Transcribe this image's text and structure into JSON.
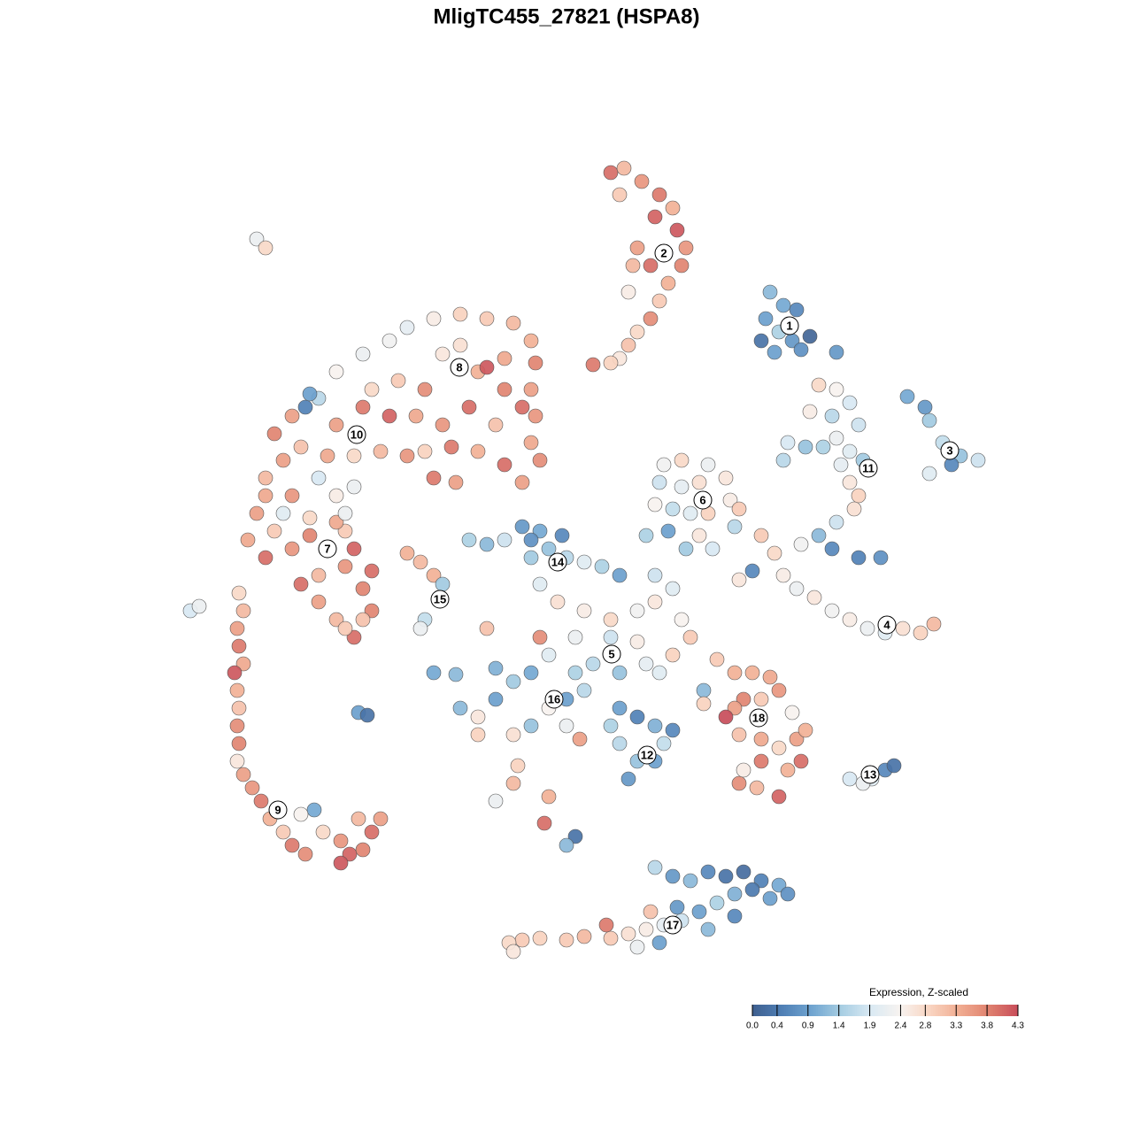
{
  "chart_data": {
    "type": "scatter",
    "title": "MligTC455_27821 (HSPA8)",
    "xlim": [
      20,
      112
    ],
    "ylim": [
      19,
      110
    ],
    "x": [
      69,
      70.5,
      72.5,
      74.5,
      76,
      76.5,
      77.5,
      77,
      75.5,
      74.5,
      73.5,
      72,
      71,
      70,
      69,
      67,
      72,
      73.5,
      71.5,
      74,
      70,
      71,
      87,
      88.5,
      90,
      86.5,
      88,
      89.5,
      91.5,
      86,
      87.5,
      90.5,
      94.5,
      102.5,
      104.5,
      105,
      106.5,
      108.5,
      110.5,
      105,
      107.5,
      92.5,
      94.5,
      96,
      94,
      97,
      94.5,
      93,
      96,
      97.5,
      89,
      91,
      88.5,
      95,
      96,
      97,
      96.5,
      94.5,
      92.5,
      90.5,
      94,
      97,
      99.5,
      91.5,
      86,
      87.5,
      88.5,
      90,
      92,
      94,
      96,
      98,
      100,
      102,
      104,
      105.5,
      83.5,
      85,
      75,
      77,
      80,
      82,
      74.5,
      77,
      79,
      74,
      76,
      78,
      80,
      82.5,
      83,
      73,
      75.5,
      79,
      80.5,
      77.5,
      83.5,
      44,
      46,
      49,
      52,
      55,
      58,
      60,
      60.5,
      60,
      60.5,
      60,
      61,
      59,
      57,
      54,
      51,
      48,
      46,
      43,
      40,
      37,
      34,
      31,
      32,
      30,
      33,
      36,
      38,
      41,
      42,
      45,
      48,
      50,
      54,
      55,
      57,
      53,
      50,
      47,
      44,
      41,
      38,
      34.5,
      35,
      57,
      52,
      49,
      51.5,
      59,
      56,
      36,
      38,
      40,
      33,
      30,
      29,
      31,
      28,
      30,
      33,
      35,
      39,
      40,
      42,
      41,
      39,
      36,
      34,
      36,
      38,
      40,
      42,
      39,
      38,
      35,
      32,
      39,
      41,
      27,
      27.5,
      26.8,
      27,
      27.5,
      26.5,
      26.8,
      27,
      26.8,
      27,
      26.8,
      27.5,
      28.5,
      29.5,
      30.5,
      32,
      33,
      34.5,
      35.5,
      34,
      36.5,
      38.5,
      39.5,
      41,
      42,
      43,
      40.5,
      38.5,
      21.5,
      22.5,
      46,
      47.5,
      49,
      50,
      48,
      47.5,
      53,
      55,
      57,
      59,
      61,
      62,
      64,
      60,
      61,
      66,
      68,
      70,
      60,
      63.5,
      63,
      66,
      69,
      72,
      74,
      76,
      65,
      69,
      72,
      67,
      70,
      73,
      76,
      78,
      61,
      62,
      65,
      74.5,
      77,
      74,
      55,
      81,
      83,
      79.5,
      79.5,
      52,
      54,
      56,
      58,
      60,
      62,
      60,
      58,
      54,
      56,
      64,
      66,
      64,
      65.5,
      49,
      51.5,
      40.5,
      41.5,
      70,
      72,
      74,
      76,
      70,
      72,
      74,
      71,
      69,
      75,
      58.5,
      58,
      56,
      62,
      61.5,
      65,
      64,
      85,
      87,
      88,
      84,
      86,
      83,
      82,
      83.5,
      86,
      88,
      90,
      91,
      90.5,
      89,
      86,
      83.5,
      85.5,
      88,
      84,
      89.5,
      96,
      98.5,
      100,
      101,
      97.5,
      74,
      76,
      78,
      80,
      82,
      84,
      86,
      88,
      89,
      87,
      85,
      83,
      81,
      79,
      77,
      75,
      73,
      71,
      69,
      68.5,
      66,
      64,
      61,
      59,
      57.5,
      58,
      72,
      74.5,
      80,
      83,
      76.5,
      73.5,
      29,
      30
    ],
    "y": [
      108.5,
      109,
      107.5,
      106,
      104.5,
      102,
      100,
      98,
      96,
      94,
      92,
      90.5,
      89,
      87.5,
      87,
      86.8,
      100,
      98,
      98,
      103.5,
      106,
      95,
      95,
      93.5,
      93,
      92,
      90.5,
      89.5,
      90,
      89.5,
      88.2,
      88.5,
      88.2,
      83.2,
      82,
      80.5,
      78,
      76.5,
      76,
      74.5,
      75.5,
      84.5,
      84,
      82.5,
      81,
      80,
      78.5,
      77.5,
      77,
      76,
      78,
      77.5,
      76,
      75.5,
      73.5,
      72,
      70.5,
      69,
      67.5,
      66.5,
      66,
      65,
      65,
      81.5,
      67.5,
      65.5,
      63,
      61.5,
      60.5,
      59,
      58,
      57,
      56.5,
      57,
      56.5,
      57.5,
      62.5,
      63.5,
      75.5,
      76,
      75.5,
      74,
      73.5,
      73,
      73.5,
      71,
      70.5,
      70,
      70,
      71.5,
      68.5,
      67.5,
      68,
      67.5,
      66,
      66,
      70.5,
      89.5,
      91,
      92,
      92.5,
      92,
      91.5,
      89.5,
      87,
      84,
      81,
      78,
      76,
      73.5,
      75.5,
      77,
      77.5,
      77,
      76.5,
      77,
      76.5,
      76.5,
      77.5,
      79,
      76,
      74,
      81,
      83,
      86,
      88,
      84,
      85,
      84,
      88,
      86,
      86.5,
      84,
      82,
      80,
      81,
      81,
      82,
      80,
      82,
      83.5,
      87.5,
      89,
      74,
      73.5,
      82,
      80,
      74,
      72,
      73,
      72,
      72,
      70,
      68,
      67,
      65,
      66,
      67.5,
      68,
      66,
      63.5,
      61.5,
      64,
      63,
      62,
      60,
      58,
      56,
      59,
      57,
      69,
      69.5,
      70,
      70,
      58,
      61,
      59,
      57,
      55,
      53,
      52,
      50,
      48,
      46,
      44,
      42,
      40.5,
      39,
      37.5,
      35.5,
      34,
      32.5,
      31.5,
      36.5,
      36,
      34,
      33,
      31.5,
      32,
      34,
      35.5,
      35.5,
      30.5,
      59,
      59.5,
      65.5,
      64.5,
      63,
      62,
      58,
      57,
      67,
      66.5,
      67,
      68.5,
      68,
      66,
      65,
      65,
      62,
      64.5,
      64,
      63,
      67,
      67.5,
      60,
      59,
      58,
      59,
      60,
      61.5,
      56,
      56,
      55.5,
      53,
      52,
      53,
      54,
      56,
      56,
      54,
      52,
      52,
      58,
      63,
      57,
      53.5,
      52,
      50,
      48.5,
      48,
      47,
      49,
      51,
      52,
      48,
      46,
      45,
      45,
      52.5,
      49,
      50,
      46,
      44.5,
      52,
      51.8,
      47.5,
      47.2,
      48,
      47,
      46,
      45.5,
      44,
      42,
      42,
      40,
      46,
      44,
      41.5,
      39.5,
      37.5,
      38,
      35,
      33.5,
      32.5,
      52,
      51.5,
      50,
      49,
      49,
      48,
      47,
      45,
      44.5,
      43.5,
      44.5,
      45.5,
      42,
      41,
      42,
      39.5,
      39,
      38,
      41,
      47.5,
      40,
      40,
      41,
      41.5,
      39.5,
      30,
      29,
      28.5,
      29.5,
      29,
      29.5,
      28.5,
      28,
      27,
      26.5,
      27.5,
      27,
      26,
      25,
      24,
      23.5,
      23,
      22.5,
      22,
      23.5,
      22.2,
      21.8,
      22,
      21.8,
      21.5,
      20.5,
      21,
      21.5,
      23,
      24.5,
      25.5,
      25,
      101,
      100
    ],
    "values": [
      4.0,
      3.2,
      3.6,
      3.9,
      3.3,
      4.2,
      3.6,
      3.8,
      3.3,
      3.0,
      3.7,
      2.8,
      3.1,
      2.6,
      2.9,
      3.9,
      3.5,
      4.0,
      3.2,
      4.1,
      3.0,
      2.5,
      1.2,
      1.0,
      0.6,
      0.9,
      1.5,
      0.8,
      0.1,
      0.3,
      0.9,
      0.7,
      0.8,
      1.0,
      0.8,
      1.4,
      1.7,
      1.3,
      1.8,
      2.0,
      0.6,
      2.8,
      2.4,
      1.9,
      1.6,
      1.8,
      2.2,
      1.5,
      2.0,
      1.4,
      1.9,
      1.3,
      1.6,
      2.1,
      2.6,
      2.9,
      2.7,
      1.8,
      1.2,
      2.3,
      0.6,
      0.5,
      0.7,
      2.5,
      3.0,
      2.8,
      2.5,
      2.2,
      2.6,
      2.3,
      2.5,
      2.2,
      2.0,
      2.7,
      2.9,
      3.2,
      2.6,
      0.6,
      2.3,
      2.8,
      2.2,
      2.6,
      1.8,
      2.1,
      2.7,
      2.4,
      1.7,
      2.0,
      2.9,
      2.5,
      1.6,
      1.5,
      0.9,
      2.6,
      1.9,
      1.4,
      3.0,
      2.3,
      2.1,
      2.5,
      2.9,
      3.0,
      3.2,
      3.3,
      3.8,
      3.5,
      3.6,
      3.4,
      3.7,
      3.5,
      4.0,
      3.3,
      3.9,
      2.9,
      3.6,
      3.2,
      2.8,
      3.4,
      3.1,
      3.8,
      3.5,
      3.2,
      3.5,
      1.6,
      2.4,
      2.2,
      2.8,
      3.0,
      3.7,
      2.6,
      3.3,
      4.2,
      3.8,
      4.0,
      3.6,
      3.4,
      4.1,
      3.9,
      3.5,
      0.5,
      0.9,
      3.4,
      2.7,
      3.9,
      3.5,
      4.0,
      3.1,
      1.9,
      2.5,
      2.2,
      3.6,
      3.4,
      3.5,
      3.0,
      3.4,
      4.0,
      3.6,
      3.8,
      3.0,
      4.1,
      4.0,
      3.8,
      3.6,
      3.2,
      4.0,
      3.5,
      3.2,
      4.0,
      3.8,
      3.0,
      3.4,
      2.8,
      2.0,
      2.2,
      3.1,
      2.8,
      3.2,
      3.5,
      3.9,
      3.4,
      4.2,
      3.3,
      3.1,
      3.7,
      3.8,
      2.6,
      3.5,
      3.6,
      3.9,
      3.3,
      3.0,
      3.9,
      3.7,
      1.0,
      2.4,
      2.8,
      3.6,
      4.1,
      3.8,
      4.0,
      3.5,
      3.2,
      4.2,
      1.9,
      2.2,
      3.3,
      3.2,
      3.3,
      1.4,
      1.7,
      2.2,
      1.5,
      1.2,
      1.8,
      0.8,
      1.0,
      1.3,
      1.6,
      1.4,
      2.0,
      2.0,
      1.5,
      0.9,
      0.7,
      0.6,
      2.7,
      2.5,
      2.8,
      2.3,
      2.6,
      2.0,
      2.2,
      1.8,
      2.5,
      1.6,
      1.3,
      2.1,
      2.9,
      3.0,
      3.7,
      2.0,
      1.5,
      2.0,
      2.4,
      1.8,
      3.1,
      3.0,
      3.3,
      1.2,
      2.9,
      1.2,
      2.6,
      0.9,
      1.4,
      1.0,
      2.4,
      1.3,
      2.7,
      2.9,
      1.1,
      0.9,
      1.6,
      2.2,
      3.5,
      1.0,
      1.2,
      0.9,
      0.3,
      0.9,
      0.5,
      1.1,
      0.6,
      1.6,
      1.3,
      0.9,
      0.8,
      1.5,
      1.7,
      2.9,
      3.2,
      2.2,
      3.3,
      4.0,
      0.3,
      1.2,
      3.3,
      3.4,
      3.6,
      3.8,
      3.0,
      3.5,
      4.3,
      3.1,
      3.4,
      2.8,
      3.5,
      3.3,
      4.0,
      3.3,
      3.9,
      3.7,
      3.2,
      4.1,
      2.5,
      2.4,
      1.9,
      2.0,
      0.6,
      0.3,
      2.2,
      1.6,
      0.8,
      1.2,
      0.6,
      0.3,
      0.2,
      0.5,
      1.0,
      0.7,
      0.9,
      0.4,
      1.1,
      1.5,
      0.9,
      1.8,
      2.1,
      2.5,
      2.7,
      3.0,
      3.9,
      3.2,
      3.0,
      2.9,
      3.0,
      2.8,
      2.6,
      2.2,
      0.9,
      1.2,
      0.6,
      0.8,
      3.1,
      2.2,
      2.8
    ],
    "annotations": [
      {
        "text": "1",
        "x": 89.2,
        "y": 91.2
      },
      {
        "text": "2",
        "x": 75,
        "y": 99.4
      },
      {
        "text": "3",
        "x": 107.3,
        "y": 77.1
      },
      {
        "text": "4",
        "x": 100.2,
        "y": 57.4
      },
      {
        "text": "5",
        "x": 69.1,
        "y": 54.1
      },
      {
        "text": "6",
        "x": 79.4,
        "y": 71.5
      },
      {
        "text": "7",
        "x": 37,
        "y": 66
      },
      {
        "text": "8",
        "x": 51.9,
        "y": 86.5
      },
      {
        "text": "9",
        "x": 31.4,
        "y": 36.5
      },
      {
        "text": "10",
        "x": 40.3,
        "y": 78.9
      },
      {
        "text": "11",
        "x": 98.1,
        "y": 75.1
      },
      {
        "text": "12",
        "x": 73.1,
        "y": 42.7
      },
      {
        "text": "13",
        "x": 98.3,
        "y": 40.5
      },
      {
        "text": "14",
        "x": 63,
        "y": 64.5
      },
      {
        "text": "15",
        "x": 49.7,
        "y": 60.3
      },
      {
        "text": "16",
        "x": 62.6,
        "y": 49
      },
      {
        "text": "17",
        "x": 76,
        "y": 23.5
      },
      {
        "text": "18",
        "x": 85.7,
        "y": 46.9
      }
    ],
    "colorbar_label": "Expression, Z-scaled",
    "clim": [
      0,
      4.3
    ],
    "cticks": [
      {
        "value": 0,
        "label": "0.0"
      },
      0.4,
      0.9,
      1.4,
      1.9,
      2.4,
      2.8,
      3.3,
      3.8,
      4.3
    ],
    "colormap": [
      "#3f5f8f",
      "#4f7fb5",
      "#6fa4d0",
      "#a6cde2",
      "#d9e9f3",
      "#f7f3f0",
      "#f9d5c2",
      "#f1ad92",
      "#e0826f",
      "#c84d5a"
    ]
  }
}
